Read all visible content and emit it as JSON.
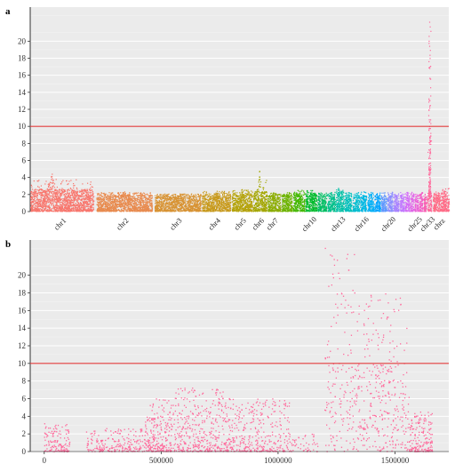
{
  "chart_data": [
    {
      "panel_label": "a",
      "type": "scatter",
      "subtype": "manhattan",
      "ylim": [
        0,
        24
      ],
      "yticks": [
        0,
        2,
        4,
        6,
        8,
        10,
        12,
        14,
        16,
        18,
        20
      ],
      "threshold": 10,
      "threshold_color": "#e03a3a",
      "grid": true,
      "background": "#ebebeb",
      "chromosomes": [
        {
          "name": "chr1",
          "label": "chr1",
          "span": [
            0.0,
            0.151
          ],
          "color": "#f8766d",
          "baseline_max": 2.6,
          "peak": 4.9,
          "peak_at": 0.33,
          "show": true
        },
        {
          "name": "chr2",
          "label": "chr2",
          "span": [
            0.158,
            0.291
          ],
          "color": "#e88b4f",
          "baseline_max": 2.0,
          "peak": 2.4,
          "peak_at": 0.5,
          "show": true
        },
        {
          "name": "chr3",
          "label": "chr3",
          "span": [
            0.297,
            0.407
          ],
          "color": "#d89334",
          "baseline_max": 1.9,
          "peak": 2.2,
          "peak_at": 0.5,
          "show": true
        },
        {
          "name": "chr4",
          "label": "chr4",
          "span": [
            0.41,
            0.478
          ],
          "color": "#c89a1c",
          "baseline_max": 2.0,
          "peak": 2.7,
          "peak_at": 0.5,
          "show": true
        },
        {
          "name": "chr5",
          "label": "chr5",
          "span": [
            0.481,
            0.53
          ],
          "color": "#b5a30c",
          "baseline_max": 2.1,
          "peak": 2.9,
          "peak_at": 0.5,
          "show": true
        },
        {
          "name": "chr6",
          "label": "chr6",
          "span": [
            0.532,
            0.565
          ],
          "color": "#a3a600",
          "baseline_max": 2.4,
          "peak": 5.2,
          "peak_at": 0.45,
          "show": true
        },
        {
          "name": "chr7",
          "label": "chr7",
          "span": [
            0.567,
            0.598
          ],
          "color": "#8bac00",
          "baseline_max": 2.0,
          "peak": 2.4,
          "peak_at": 0.5,
          "show": true
        },
        {
          "name": "chr8",
          "label": "",
          "span": [
            0.6,
            0.626
          ],
          "color": "#6db300",
          "baseline_max": 2.0,
          "peak": 2.4,
          "peak_at": 0.5,
          "show": false
        },
        {
          "name": "chr9",
          "label": "",
          "span": [
            0.628,
            0.655
          ],
          "color": "#44b800",
          "baseline_max": 2.2,
          "peak": 2.8,
          "peak_at": 0.5,
          "show": false
        },
        {
          "name": "chr10",
          "label": "chr10",
          "span": [
            0.657,
            0.684
          ],
          "color": "#00bb2c",
          "baseline_max": 2.2,
          "peak": 2.8,
          "peak_at": 0.5,
          "show": true
        },
        {
          "name": "chr11",
          "label": "",
          "span": [
            0.686,
            0.707
          ],
          "color": "#00be63",
          "baseline_max": 2.0,
          "peak": 2.5,
          "peak_at": 0.5,
          "show": false
        },
        {
          "name": "chr12",
          "label": "",
          "span": [
            0.709,
            0.728
          ],
          "color": "#00c08b",
          "baseline_max": 2.0,
          "peak": 2.5,
          "peak_at": 0.5,
          "show": false
        },
        {
          "name": "chr13",
          "label": "chr13",
          "span": [
            0.73,
            0.749
          ],
          "color": "#00c1a7",
          "baseline_max": 2.4,
          "peak": 3.0,
          "peak_at": 0.5,
          "show": true
        },
        {
          "name": "chr14",
          "label": "",
          "span": [
            0.751,
            0.768
          ],
          "color": "#00c0bc",
          "baseline_max": 2.0,
          "peak": 2.5,
          "peak_at": 0.5,
          "show": false
        },
        {
          "name": "chr15",
          "label": "",
          "span": [
            0.77,
            0.786
          ],
          "color": "#00bdd0",
          "baseline_max": 2.0,
          "peak": 2.5,
          "peak_at": 0.5,
          "show": false
        },
        {
          "name": "chr16",
          "label": "chr16",
          "span": [
            0.788,
            0.803
          ],
          "color": "#00b8e3",
          "baseline_max": 2.0,
          "peak": 2.6,
          "peak_at": 0.5,
          "show": true
        },
        {
          "name": "chr17",
          "label": "",
          "span": [
            0.805,
            0.82
          ],
          "color": "#00b0f6",
          "baseline_max": 2.0,
          "peak": 2.5,
          "peak_at": 0.5,
          "show": false
        },
        {
          "name": "chr18",
          "label": "",
          "span": [
            0.822,
            0.836
          ],
          "color": "#00a5ff",
          "baseline_max": 2.0,
          "peak": 2.5,
          "peak_at": 0.5,
          "show": false
        },
        {
          "name": "chr19",
          "label": "",
          "span": [
            0.838,
            0.851
          ],
          "color": "#5f98ff",
          "baseline_max": 2.0,
          "peak": 2.5,
          "peak_at": 0.5,
          "show": false
        },
        {
          "name": "chr20",
          "label": "chr20",
          "span": [
            0.853,
            0.866
          ],
          "color": "#8b8dff",
          "baseline_max": 2.0,
          "peak": 2.6,
          "peak_at": 0.5,
          "show": true
        },
        {
          "name": "chr21",
          "label": "",
          "span": [
            0.868,
            0.88
          ],
          "color": "#a781ff",
          "baseline_max": 2.0,
          "peak": 2.5,
          "peak_at": 0.5,
          "show": false
        },
        {
          "name": "chr22",
          "label": "",
          "span": [
            0.882,
            0.893
          ],
          "color": "#c077ff",
          "baseline_max": 2.0,
          "peak": 2.5,
          "peak_at": 0.5,
          "show": false
        },
        {
          "name": "chr23",
          "label": "",
          "span": [
            0.895,
            0.905
          ],
          "color": "#d46ef7",
          "baseline_max": 2.0,
          "peak": 2.5,
          "peak_at": 0.5,
          "show": false
        },
        {
          "name": "chr24",
          "label": "",
          "span": [
            0.907,
            0.916
          ],
          "color": "#e066e8",
          "baseline_max": 2.0,
          "peak": 2.5,
          "peak_at": 0.5,
          "show": false
        },
        {
          "name": "chr25",
          "label": "chr25",
          "span": [
            0.918,
            0.927
          ],
          "color": "#eb60d8",
          "baseline_max": 2.0,
          "peak": 2.6,
          "peak_at": 0.5,
          "show": true
        },
        {
          "name": "chr26",
          "label": "",
          "span": [
            0.929,
            0.937
          ],
          "color": "#f35ec6",
          "baseline_max": 2.0,
          "peak": 2.5,
          "peak_at": 0.5,
          "show": false
        },
        {
          "name": "chr27",
          "label": "",
          "span": [
            0.939,
            0.946
          ],
          "color": "#f862b2",
          "baseline_max": 2.0,
          "peak": 2.5,
          "peak_at": 0.5,
          "show": false
        },
        {
          "name": "chr33",
          "label": "chr33",
          "span": [
            0.948,
            0.958
          ],
          "color": "#ff6a9c",
          "baseline_max": 2.2,
          "peak": 23.0,
          "peak_at": 0.55,
          "show": true
        },
        {
          "name": "chrZ",
          "label": "chrz",
          "span": [
            0.962,
            1.0
          ],
          "color": "#ff6c87",
          "baseline_max": 2.2,
          "peak": 3.3,
          "peak_at": 0.3,
          "show": true
        }
      ]
    },
    {
      "panel_label": "b",
      "type": "scatter",
      "x": [],
      "xlim": [
        -60000,
        1730000
      ],
      "xticks": [
        0,
        500000,
        1000000,
        1500000
      ],
      "ylim": [
        0,
        24
      ],
      "yticks": [
        0,
        2,
        4,
        6,
        8,
        10,
        12,
        14,
        16,
        18,
        20
      ],
      "threshold": 10,
      "threshold_color": "#e03a3a",
      "grid": true,
      "background": "#ebebeb",
      "color": "#ff6a9c",
      "regions": [
        {
          "x": [
            0,
            110000
          ],
          "y_max": 3.2,
          "density": 140
        },
        {
          "x": [
            180000,
            430000
          ],
          "y_max": 2.6,
          "density": 230
        },
        {
          "x": [
            430000,
            560000
          ],
          "y_max": 6.0,
          "density": 260
        },
        {
          "x": [
            560000,
            780000
          ],
          "y_max": 7.2,
          "density": 380
        },
        {
          "x": [
            780000,
            1050000
          ],
          "y_max": 6.0,
          "density": 380
        },
        {
          "x": [
            1050000,
            1170000
          ],
          "y_max": 2.0,
          "density": 50
        },
        {
          "x": [
            1200000,
            1340000
          ],
          "y_max": 23.5,
          "density": 180
        },
        {
          "x": [
            1340000,
            1480000
          ],
          "y_max": 18.0,
          "density": 230
        },
        {
          "x": [
            1480000,
            1560000
          ],
          "y_max": 17.5,
          "density": 110
        },
        {
          "x": [
            1560000,
            1660000
          ],
          "y_max": 4.5,
          "density": 190
        }
      ]
    }
  ]
}
